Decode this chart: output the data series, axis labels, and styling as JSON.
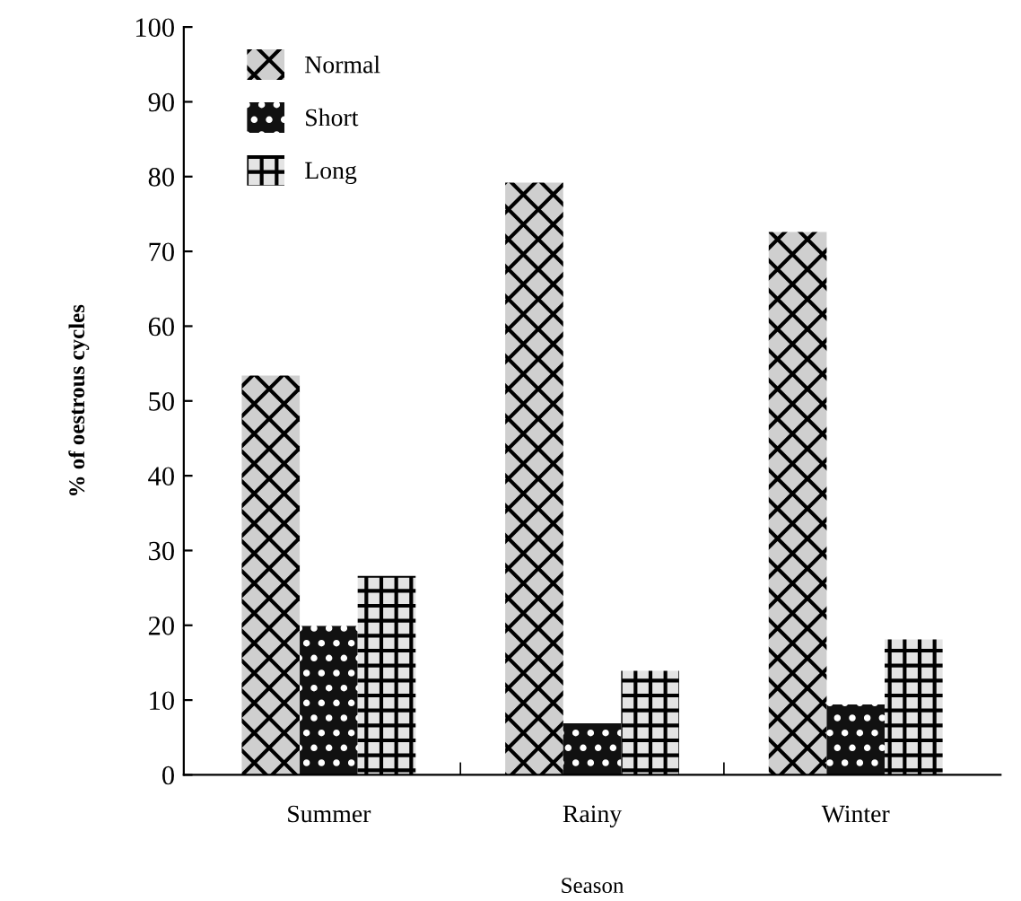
{
  "chart_data": {
    "type": "bar",
    "xlabel": "Season",
    "ylabel": "% of oestrous cycles",
    "categories": [
      "Summer",
      "Rainy",
      "Winter"
    ],
    "series": [
      {
        "name": "Normal",
        "color": "#cfcfcf",
        "values": [
          53.4,
          79.2,
          72.6
        ]
      },
      {
        "name": "Short",
        "color": "#111111",
        "values": [
          19.9,
          6.9,
          9.4
        ]
      },
      {
        "name": "Long",
        "color": "#e4e4e4",
        "values": [
          26.6,
          13.9,
          18.1
        ]
      }
    ],
    "ylim": [
      0,
      100
    ],
    "yticks": [
      0,
      10,
      20,
      30,
      40,
      50,
      60,
      70,
      80,
      90,
      100
    ],
    "grid": false,
    "legend": "top left"
  }
}
